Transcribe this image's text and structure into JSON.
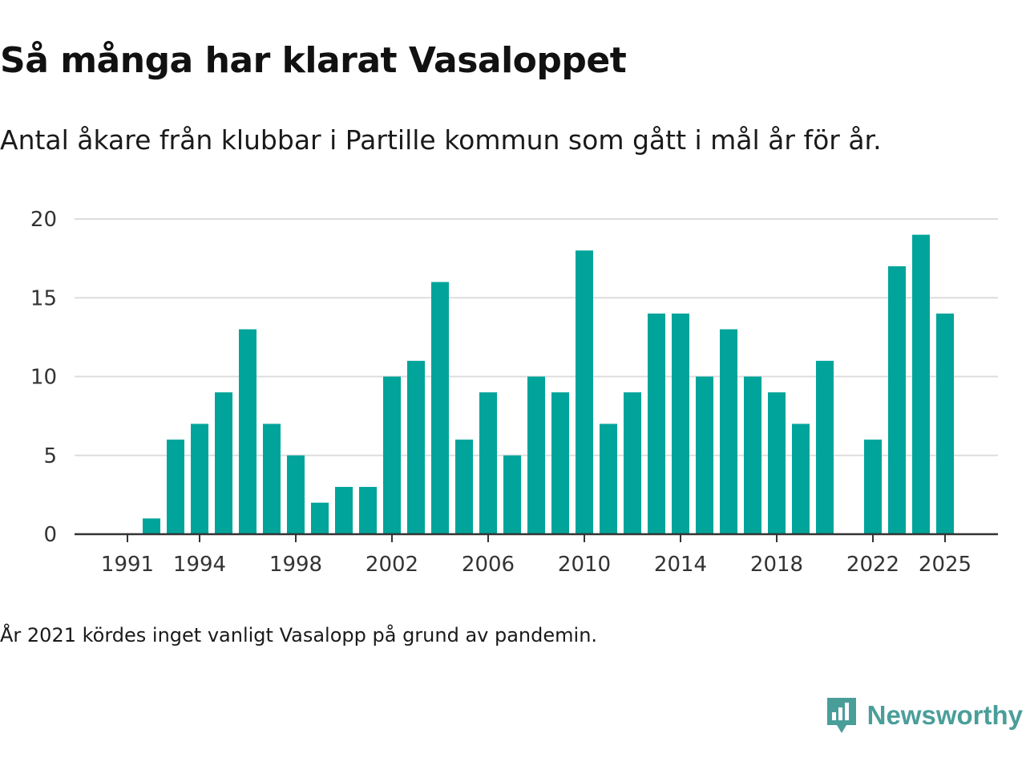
{
  "header": {
    "title": "Så många har klarat Vasaloppet",
    "subtitle": "Antal åkare från klubbar i Partille kommun som gått i mål år för år."
  },
  "footer": {
    "note": "År 2021 kördes inget vanligt Vasalopp på grund av pandemin.",
    "brand": "Newsworthy"
  },
  "colors": {
    "bar": "#00a49a",
    "grid": "#dddddd",
    "axis": "#333333",
    "brand": "#4a9e9a"
  },
  "chart_data": {
    "type": "bar",
    "title": "Så många har klarat Vasaloppet",
    "xlabel": "",
    "ylabel": "",
    "ylim": [
      0,
      20
    ],
    "yticks": [
      0,
      5,
      10,
      15,
      20
    ],
    "xticks": [
      1991,
      1994,
      1998,
      2002,
      2006,
      2010,
      2014,
      2018,
      2022,
      2025
    ],
    "grid": true,
    "categories": [
      1991,
      1992,
      1993,
      1994,
      1995,
      1996,
      1997,
      1998,
      1999,
      2000,
      2001,
      2002,
      2003,
      2004,
      2005,
      2006,
      2007,
      2008,
      2009,
      2010,
      2011,
      2012,
      2013,
      2014,
      2015,
      2016,
      2017,
      2018,
      2019,
      2020,
      2021,
      2022,
      2023,
      2024,
      2025
    ],
    "values": [
      0,
      1,
      6,
      7,
      9,
      13,
      7,
      5,
      2,
      3,
      3,
      10,
      11,
      16,
      6,
      9,
      5,
      10,
      9,
      18,
      7,
      9,
      14,
      14,
      10,
      13,
      10,
      9,
      7,
      11,
      null,
      6,
      17,
      19,
      14
    ]
  }
}
